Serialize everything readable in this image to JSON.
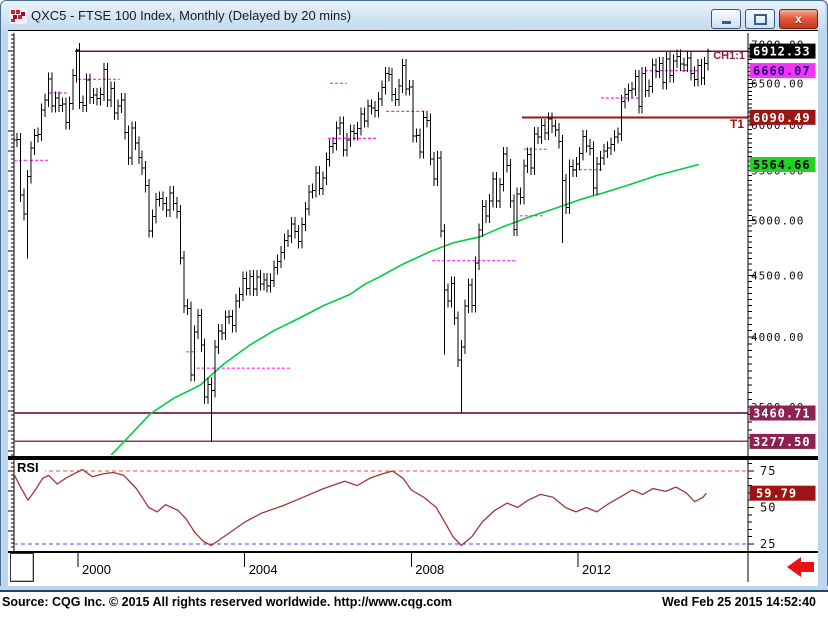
{
  "window": {
    "title": "QXC5 - FTSE 100 Index, Monthly (Delayed by 20 mins)",
    "icons": {
      "app": "cqg-dots-logo",
      "minimize": "minus-bar",
      "maximize": "square",
      "close": "x-cross"
    },
    "controls": {
      "close_glyph": "x"
    }
  },
  "status_bar": {
    "left": "Source: CQG Inc. © 2015 All rights reserved worldwide. http://www.cqg.com",
    "right": "Wed Feb 25 2015 14:52:40"
  },
  "chart_data": {
    "type": "ohlc-bar",
    "instrument": "FTSE 100 Index",
    "symbol": "QXC5",
    "interval": "Monthly",
    "price_scale": "log",
    "y_axis": {
      "gridlines": [
        7000,
        6500,
        6000,
        5500,
        5000,
        4500,
        4000,
        3500
      ],
      "format": "0.00"
    },
    "x_axis": {
      "years": [
        2000,
        2004,
        2008,
        2012
      ]
    },
    "last_price": 6912.33,
    "series": {
      "start_year": 1998,
      "start_month": 6,
      "interval": "monthly",
      "closes": [
        5833,
        5837,
        5249,
        5064,
        5438,
        5743,
        5882,
        5896,
        6175,
        6295,
        6552,
        6226,
        6318,
        6231,
        6246,
        6029,
        6255,
        6597,
        6930,
        6268,
        6232,
        6540,
        6327,
        6359,
        6312,
        6365,
        6672,
        6294,
        6438,
        6142,
        6222,
        6297,
        5917,
        5633,
        5966,
        5796,
        5642,
        5529,
        5345,
        4903,
        5039,
        5203,
        5217,
        5164,
        5101,
        5271,
        5165,
        5085,
        4656,
        4246,
        4227,
        3722,
        4039,
        4169,
        3940,
        3567,
        3655,
        3613,
        3926,
        4048,
        4031,
        4157,
        4161,
        4091,
        4287,
        4342,
        4477,
        4390,
        4492,
        4386,
        4489,
        4430,
        4464,
        4413,
        4459,
        4571,
        4624,
        4703,
        4814,
        4852,
        4969,
        4894,
        4801,
        4964,
        5113,
        5282,
        5296,
        5478,
        5317,
        5423,
        5619,
        5760,
        5792,
        5965,
        6023,
        5723,
        5833,
        5928,
        5906,
        5960,
        6129,
        6049,
        6221,
        6203,
        6171,
        6308,
        6449,
        6621,
        6608,
        6360,
        6303,
        6467,
        6722,
        6432,
        6457,
        5879,
        5884,
        5702,
        6087,
        6054,
        5626,
        5412,
        5637,
        4902,
        4377,
        4288,
        4434,
        4149,
        3830,
        3926,
        4244,
        4418,
        4249,
        4608,
        4909,
        5134,
        5044,
        5191,
        5413,
        5189,
        5355,
        5680,
        5553,
        5188,
        4917,
        5258,
        5225,
        5549,
        5675,
        5528,
        5900,
        5863,
        5994,
        5909,
        6070,
        5990,
        5946,
        5815,
        5395,
        5128,
        5544,
        5505,
        5572,
        5682,
        5871,
        5768,
        5738,
        5321,
        5571,
        5635,
        5711,
        5742,
        5783,
        5867,
        5898,
        6277,
        6361,
        6412,
        6430,
        6583,
        6215,
        6621,
        6413,
        6462,
        6731,
        6651,
        6749,
        6510,
        6810,
        6598,
        6780,
        6844,
        6744,
        6730,
        6820,
        6623,
        6546,
        6723,
        6566,
        6749,
        6912.33
      ],
      "extreme_overrides": {
        "4": {
          "low": 4648
        },
        "18": {
          "high": 6950
        },
        "57": {
          "low": 3277.5
        },
        "124": {
          "low": 3870
        },
        "129": {
          "low": 3460.71
        },
        "158": {
          "low": 4791
        },
        "200": {
          "high": 6946
        }
      }
    },
    "price_badges": [
      {
        "value": 6912.33,
        "bg": "#000000",
        "fg": "#ffffff",
        "role": "last-price"
      },
      {
        "value": 6660.07,
        "bg": "#f832f8",
        "fg": "#141478",
        "role": "pivot-level"
      },
      {
        "value": 6090.49,
        "bg": "#9b1515",
        "fg": "#ffffff",
        "role": "trendline-t1"
      },
      {
        "value": 5564.66,
        "bg": "#1fd51f",
        "fg": "#000000",
        "role": "moving-average"
      },
      {
        "value": 3460.71,
        "bg": "#8b2252",
        "fg": "#ffffff",
        "role": "support-2009-low"
      },
      {
        "value": 3277.5,
        "bg": "#8b2252",
        "fg": "#ffffff",
        "role": "support-2003-low"
      }
    ],
    "horizontal_lines": [
      {
        "price": 6912.33,
        "from": 1999.93,
        "color": "#7b0c4e",
        "width": 1.6
      },
      {
        "price": 6090.49,
        "from": 2010.65,
        "color": "#a50f0f",
        "width": 2
      },
      {
        "price": 3460.71,
        "from": null,
        "color": "#8b3a62",
        "width": 1.6
      },
      {
        "price": 3277.5,
        "from": null,
        "color": "#8b3a62",
        "width": 1.6
      }
    ],
    "pivot_dashes": {
      "color": "#ff22ff",
      "segments": [
        [
          1998.46,
          1998.8,
          5610
        ],
        [
          1998.85,
          1999.3,
          5610
        ],
        [
          1999.3,
          1999.75,
          6380
        ],
        [
          2000.0,
          2001.0,
          6550
        ],
        [
          2002.6,
          2002.85,
          3890
        ],
        [
          2002.85,
          2005.1,
          3770
        ],
        [
          2006.05,
          2006.45,
          6500
        ],
        [
          2006.0,
          2007.2,
          5850
        ],
        [
          2007.4,
          2008.35,
          6160
        ],
        [
          2008.5,
          2010.5,
          4630
        ],
        [
          2010.6,
          2011.2,
          5045
        ],
        [
          2010.7,
          2011.25,
          5730
        ],
        [
          2011.9,
          2012.6,
          5510
        ],
        [
          2012.55,
          2013.5,
          6320
        ],
        [
          2013.6,
          2014.92,
          6660.07
        ]
      ]
    },
    "moving_average": {
      "color": "#00cc44",
      "value": 5564.66,
      "points": [
        [
          2000.8,
          3194
        ],
        [
          2001.3,
          3330
        ],
        [
          2001.73,
          3454
        ],
        [
          2002.3,
          3560
        ],
        [
          2002.93,
          3650
        ],
        [
          2003.5,
          3800
        ],
        [
          2004.12,
          3940
        ],
        [
          2004.7,
          4050
        ],
        [
          2005.32,
          4150
        ],
        [
          2005.9,
          4250
        ],
        [
          2006.52,
          4340
        ],
        [
          2006.9,
          4430
        ],
        [
          2007.24,
          4490
        ],
        [
          2007.8,
          4600
        ],
        [
          2008.44,
          4710
        ],
        [
          2009.0,
          4790
        ],
        [
          2009.64,
          4847
        ],
        [
          2010.2,
          4940
        ],
        [
          2010.84,
          5036
        ],
        [
          2011.4,
          5110
        ],
        [
          2012.04,
          5203
        ],
        [
          2012.6,
          5270
        ],
        [
          2013.24,
          5355
        ],
        [
          2013.9,
          5450
        ],
        [
          2014.9,
          5564.66
        ]
      ]
    },
    "annotations": [
      {
        "text": "CH1:1",
        "color": "#8b2040"
      },
      {
        "text": "T1",
        "color": "#a50f0f"
      }
    ],
    "rsi": {
      "label": "RSI",
      "overbought": 75,
      "oversold": 25,
      "value": 59.79,
      "axis_labels": [
        75,
        50,
        25
      ],
      "line_color": "#a33636",
      "overbought_color": "#ff4444",
      "oversold_color": "#4444ff",
      "badge": {
        "bg": "#9b1515",
        "fg": "#ffffff"
      },
      "points": [
        [
          1998.46,
          73
        ],
        [
          1998.6,
          65
        ],
        [
          1998.8,
          55
        ],
        [
          1999.0,
          63
        ],
        [
          1999.15,
          70
        ],
        [
          1999.3,
          72
        ],
        [
          1999.5,
          66
        ],
        [
          1999.7,
          70
        ],
        [
          1999.9,
          73
        ],
        [
          2000.1,
          76
        ],
        [
          2000.35,
          71
        ],
        [
          2000.6,
          73
        ],
        [
          2000.85,
          74
        ],
        [
          2001.1,
          72
        ],
        [
          2001.4,
          63
        ],
        [
          2001.7,
          50
        ],
        [
          2001.9,
          47
        ],
        [
          2002.1,
          52
        ],
        [
          2002.4,
          48
        ],
        [
          2002.6,
          42
        ],
        [
          2002.8,
          33
        ],
        [
          2003.0,
          27
        ],
        [
          2003.2,
          24
        ],
        [
          2003.4,
          28
        ],
        [
          2003.7,
          34
        ],
        [
          2004.0,
          40
        ],
        [
          2004.4,
          46
        ],
        [
          2004.9,
          51
        ],
        [
          2005.4,
          57
        ],
        [
          2005.9,
          63
        ],
        [
          2006.4,
          68
        ],
        [
          2006.7,
          65
        ],
        [
          2007.0,
          70
        ],
        [
          2007.3,
          73
        ],
        [
          2007.55,
          75
        ],
        [
          2007.8,
          70
        ],
        [
          2008.0,
          62
        ],
        [
          2008.3,
          57
        ],
        [
          2008.6,
          50
        ],
        [
          2008.8,
          40
        ],
        [
          2009.0,
          30
        ],
        [
          2009.2,
          24
        ],
        [
          2009.45,
          30
        ],
        [
          2009.7,
          40
        ],
        [
          2010.0,
          48
        ],
        [
          2010.3,
          53
        ],
        [
          2010.55,
          50
        ],
        [
          2010.8,
          55
        ],
        [
          2011.1,
          59
        ],
        [
          2011.4,
          57
        ],
        [
          2011.7,
          50
        ],
        [
          2011.95,
          47
        ],
        [
          2012.2,
          50
        ],
        [
          2012.45,
          47
        ],
        [
          2012.7,
          52
        ],
        [
          2013.0,
          57
        ],
        [
          2013.3,
          62
        ],
        [
          2013.55,
          59
        ],
        [
          2013.8,
          63
        ],
        [
          2014.1,
          61
        ],
        [
          2014.35,
          64
        ],
        [
          2014.6,
          60
        ],
        [
          2014.8,
          54
        ],
        [
          2015.0,
          57
        ],
        [
          2015.08,
          59.79
        ]
      ]
    }
  }
}
